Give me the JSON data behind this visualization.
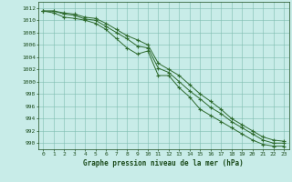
{
  "x": [
    0,
    1,
    2,
    3,
    4,
    5,
    6,
    7,
    8,
    9,
    10,
    11,
    12,
    13,
    14,
    15,
    16,
    17,
    18,
    19,
    20,
    21,
    22,
    23
  ],
  "line_max": [
    1011.5,
    1011.5,
    1011.2,
    1011.0,
    1010.5,
    1010.3,
    1009.5,
    1008.5,
    1007.5,
    1006.8,
    1006.0,
    1003.0,
    1002.0,
    1001.0,
    999.5,
    998.0,
    996.8,
    995.5,
    994.0,
    993.0,
    992.0,
    991.0,
    990.5,
    990.3
  ],
  "line_mid": [
    1011.5,
    1011.5,
    1011.0,
    1010.8,
    1010.2,
    1010.0,
    1009.0,
    1008.0,
    1007.0,
    1005.8,
    1005.5,
    1002.2,
    1001.5,
    1000.0,
    998.5,
    997.2,
    995.8,
    994.8,
    993.5,
    992.5,
    991.5,
    990.5,
    990.0,
    990.0
  ],
  "line_min": [
    1011.5,
    1011.2,
    1010.5,
    1010.3,
    1010.0,
    1009.5,
    1008.5,
    1007.0,
    1005.5,
    1004.5,
    1005.0,
    1001.0,
    1001.0,
    999.0,
    997.5,
    995.5,
    994.5,
    993.5,
    992.5,
    991.5,
    990.5,
    989.8,
    989.5,
    989.5
  ],
  "ylim": [
    989,
    1013
  ],
  "xlim": [
    -0.5,
    23.5
  ],
  "yticks": [
    990,
    992,
    994,
    996,
    998,
    1000,
    1002,
    1004,
    1006,
    1008,
    1010,
    1012
  ],
  "xticks": [
    0,
    1,
    2,
    3,
    4,
    5,
    6,
    7,
    8,
    9,
    10,
    11,
    12,
    13,
    14,
    15,
    16,
    17,
    18,
    19,
    20,
    21,
    22,
    23
  ],
  "xlabel": "Graphe pression niveau de la mer (hPa)",
  "line_color": "#2d6a2d",
  "marker": "+",
  "bg_color": "#c8ece8",
  "grid_color": "#7dbcb0",
  "text_color": "#1a4a1a",
  "tick_fontsize": 4.5,
  "xlabel_fontsize": 5.5
}
